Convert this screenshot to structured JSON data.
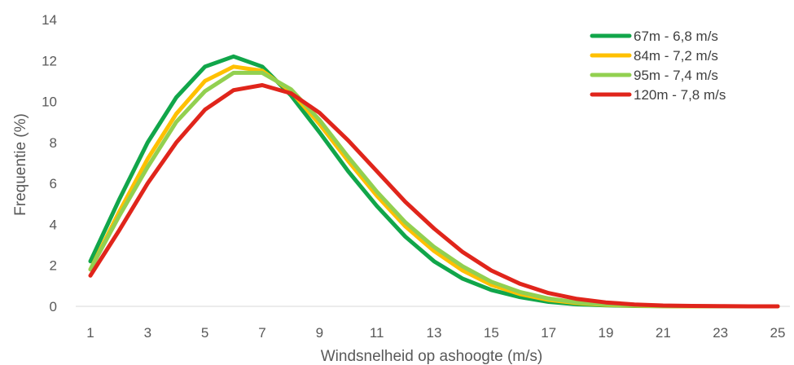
{
  "chart_data": {
    "type": "line",
    "title": "",
    "xlabel": "Windsnelheid op ashoogte (m/s)",
    "ylabel": "Frequentie (%)",
    "ylim": [
      0,
      14
    ],
    "xlim": [
      1,
      25
    ],
    "yticks": [
      "0",
      "2",
      "4",
      "6",
      "8",
      "10",
      "12",
      "14"
    ],
    "xticks": [
      "1",
      "3",
      "5",
      "7",
      "9",
      "11",
      "13",
      "15",
      "17",
      "19",
      "21",
      "23",
      "25"
    ],
    "grid": false,
    "legend_position": "top-right",
    "x": [
      1,
      2,
      3,
      4,
      5,
      6,
      7,
      8,
      9,
      10,
      11,
      12,
      13,
      14,
      15,
      16,
      17,
      18,
      19,
      20,
      21,
      22,
      23,
      24,
      25
    ],
    "series": [
      {
        "name": "67m - 6,8 m/s",
        "color": "#11a64a",
        "values": [
          2.2,
          5.2,
          8.0,
          10.2,
          11.7,
          12.2,
          11.7,
          10.3,
          8.5,
          6.6,
          4.9,
          3.4,
          2.2,
          1.35,
          0.8,
          0.45,
          0.22,
          0.1,
          0.05,
          0.02,
          0.01,
          0.0,
          0.0,
          0.0,
          0.0
        ]
      },
      {
        "name": "84m - 7,2 m/s",
        "color": "#ffc000",
        "values": [
          1.8,
          4.6,
          7.2,
          9.4,
          11.0,
          11.7,
          11.5,
          10.5,
          8.9,
          7.1,
          5.4,
          3.9,
          2.7,
          1.75,
          1.05,
          0.6,
          0.32,
          0.16,
          0.07,
          0.03,
          0.01,
          0.0,
          0.0,
          0.0,
          0.0
        ]
      },
      {
        "name": "95m - 7,4 m/s",
        "color": "#92d050",
        "values": [
          1.8,
          4.4,
          6.8,
          9.0,
          10.5,
          11.4,
          11.4,
          10.6,
          9.1,
          7.3,
          5.6,
          4.1,
          2.9,
          1.95,
          1.2,
          0.7,
          0.38,
          0.19,
          0.09,
          0.04,
          0.02,
          0.01,
          0.0,
          0.0,
          0.0
        ]
      },
      {
        "name": "120m - 7,8 m/s",
        "color": "#e0251b",
        "values": [
          1.5,
          3.7,
          6.0,
          8.0,
          9.6,
          10.55,
          10.8,
          10.4,
          9.45,
          8.1,
          6.6,
          5.1,
          3.8,
          2.65,
          1.75,
          1.1,
          0.65,
          0.36,
          0.19,
          0.09,
          0.04,
          0.02,
          0.01,
          0.0,
          0.0
        ]
      }
    ]
  }
}
